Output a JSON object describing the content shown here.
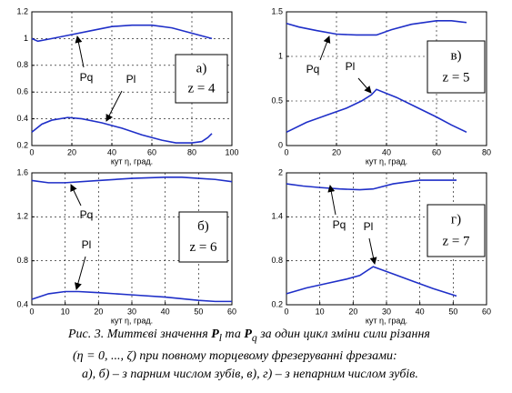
{
  "chart_data": [
    {
      "type": "line",
      "xlabel": "кут η, град.",
      "panel_label": "а)",
      "z_label": "z = 4",
      "grid": true,
      "xlim": [
        0,
        100
      ],
      "xticks": [
        0,
        20,
        40,
        60,
        80,
        100
      ],
      "ylim": [
        0.2,
        1.2
      ],
      "yticks": [
        0.2,
        0.4,
        0.6,
        0.8,
        1,
        1.2
      ],
      "series": [
        {
          "name": "Pq",
          "color": "#1f2fc8",
          "x": [
            0,
            3,
            10,
            20,
            30,
            40,
            50,
            55,
            60,
            70,
            80,
            90
          ],
          "values": [
            1.0,
            0.98,
            1.0,
            1.03,
            1.06,
            1.09,
            1.1,
            1.1,
            1.1,
            1.08,
            1.04,
            1.0
          ]
        },
        {
          "name": "Pl",
          "color": "#1f2fc8",
          "x": [
            0,
            5,
            10,
            18,
            25,
            35,
            45,
            55,
            65,
            72,
            80,
            85,
            88,
            90
          ],
          "values": [
            0.3,
            0.36,
            0.39,
            0.41,
            0.4,
            0.37,
            0.33,
            0.28,
            0.24,
            0.22,
            0.22,
            0.23,
            0.26,
            0.29
          ]
        }
      ]
    },
    {
      "type": "line",
      "xlabel": "кут η, град.",
      "panel_label": "в)",
      "z_label": "z = 5",
      "grid": true,
      "xlim": [
        0,
        80
      ],
      "xticks": [
        0,
        20,
        40,
        60,
        80
      ],
      "ylim": [
        0,
        1.5
      ],
      "yticks": [
        0,
        0.5,
        1,
        1.5
      ],
      "series": [
        {
          "name": "Pq",
          "color": "#1f2fc8",
          "x": [
            0,
            5,
            12,
            20,
            28,
            36,
            42,
            50,
            60,
            66,
            72
          ],
          "values": [
            1.37,
            1.33,
            1.29,
            1.25,
            1.24,
            1.24,
            1.3,
            1.36,
            1.4,
            1.4,
            1.38
          ]
        },
        {
          "name": "Pl",
          "color": "#1f2fc8",
          "x": [
            0,
            8,
            16,
            24,
            30,
            34,
            36,
            44,
            52,
            60,
            66,
            72
          ],
          "values": [
            0.15,
            0.26,
            0.34,
            0.42,
            0.5,
            0.57,
            0.63,
            0.54,
            0.43,
            0.32,
            0.23,
            0.15
          ]
        }
      ]
    },
    {
      "type": "line",
      "xlabel": "кут η, град.",
      "panel_label": "б)",
      "z_label": "z = 6",
      "grid": true,
      "xlim": [
        0,
        60
      ],
      "xticks": [
        0,
        10,
        20,
        30,
        40,
        50,
        60
      ],
      "ylim": [
        0.4,
        1.6
      ],
      "yticks": [
        0.4,
        0.8,
        1.2,
        1.6
      ],
      "series": [
        {
          "name": "Pq",
          "color": "#1f2fc8",
          "x": [
            0,
            5,
            10,
            20,
            30,
            40,
            45,
            50,
            55,
            60
          ],
          "values": [
            1.53,
            1.51,
            1.51,
            1.53,
            1.55,
            1.56,
            1.56,
            1.55,
            1.54,
            1.52
          ]
        },
        {
          "name": "Pl",
          "color": "#1f2fc8",
          "x": [
            0,
            5,
            10,
            14,
            20,
            30,
            40,
            50,
            55,
            60
          ],
          "values": [
            0.45,
            0.5,
            0.52,
            0.52,
            0.51,
            0.49,
            0.47,
            0.44,
            0.43,
            0.43
          ]
        }
      ]
    },
    {
      "type": "line",
      "xlabel": "кут η, град.",
      "panel_label": "г)",
      "z_label": "z = 7",
      "grid": true,
      "xlim": [
        0,
        60
      ],
      "xticks": [
        0,
        10,
        20,
        30,
        40,
        50,
        60
      ],
      "ylim": [
        0.2,
        2
      ],
      "yticks": [
        0.2,
        0.8,
        1.4,
        2
      ],
      "series": [
        {
          "name": "Pq",
          "color": "#1f2fc8",
          "x": [
            0,
            5,
            10,
            16,
            22,
            26,
            32,
            40,
            46,
            51
          ],
          "values": [
            1.85,
            1.82,
            1.8,
            1.78,
            1.77,
            1.78,
            1.85,
            1.9,
            1.9,
            1.9
          ]
        },
        {
          "name": "Pl",
          "color": "#1f2fc8",
          "x": [
            0,
            6,
            12,
            18,
            22,
            26,
            32,
            38,
            44,
            51
          ],
          "values": [
            0.35,
            0.43,
            0.49,
            0.55,
            0.6,
            0.72,
            0.62,
            0.52,
            0.42,
            0.32
          ]
        }
      ]
    }
  ],
  "caption": {
    "lines": [
      [
        "Рис. 3. Миттєві значення ",
        "P",
        "l",
        " та ",
        "P",
        "q",
        " за один цикл зміни сили різання"
      ],
      [
        "(η = 0, ..., ζ) при повному торцевому фрезеруванні фрезами:"
      ],
      [
        "а), б) – з парним числом зубів, в), г) – з непарним числом зубів."
      ]
    ]
  }
}
